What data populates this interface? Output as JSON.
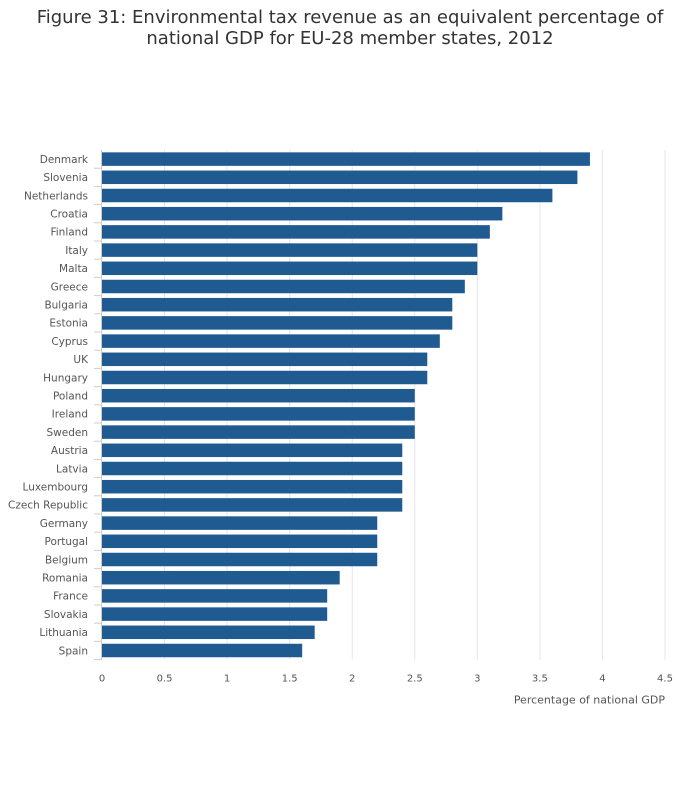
{
  "chart_data": {
    "type": "bar",
    "orientation": "horizontal",
    "title_line1": "Figure 31: Environmental tax revenue as an equivalent percentage of",
    "title_line2": "national GDP for EU-28 member states, 2012",
    "xlabel": "Percentage of national GDP",
    "ylabel": "",
    "xlim": [
      0,
      4.5
    ],
    "x_ticks": [
      0,
      0.5,
      1,
      1.5,
      2,
      2.5,
      3,
      3.5,
      4,
      4.5
    ],
    "x_tick_labels": [
      "0",
      "0.5",
      "1",
      "1.5",
      "2",
      "2.5",
      "3",
      "3.5",
      "4",
      "4.5"
    ],
    "grid": true,
    "bar_color": "#1f5a91",
    "categories": [
      "Denmark",
      "Slovenia",
      "Netherlands",
      "Croatia",
      "Finland",
      "Italy",
      "Malta",
      "Greece",
      "Bulgaria",
      "Estonia",
      "Cyprus",
      "UK",
      "Hungary",
      "Poland",
      "Ireland",
      "Sweden",
      "Austria",
      "Latvia",
      "Luxembourg",
      "Czech Republic",
      "Germany",
      "Portugal",
      "Belgium",
      "Romania",
      "France",
      "Slovakia",
      "Lithuania",
      "Spain"
    ],
    "values": [
      3.9,
      3.8,
      3.6,
      3.2,
      3.1,
      3.0,
      3.0,
      2.9,
      2.8,
      2.8,
      2.7,
      2.6,
      2.6,
      2.5,
      2.5,
      2.5,
      2.4,
      2.4,
      2.4,
      2.4,
      2.2,
      2.2,
      2.2,
      1.9,
      1.8,
      1.8,
      1.7,
      1.6
    ]
  }
}
